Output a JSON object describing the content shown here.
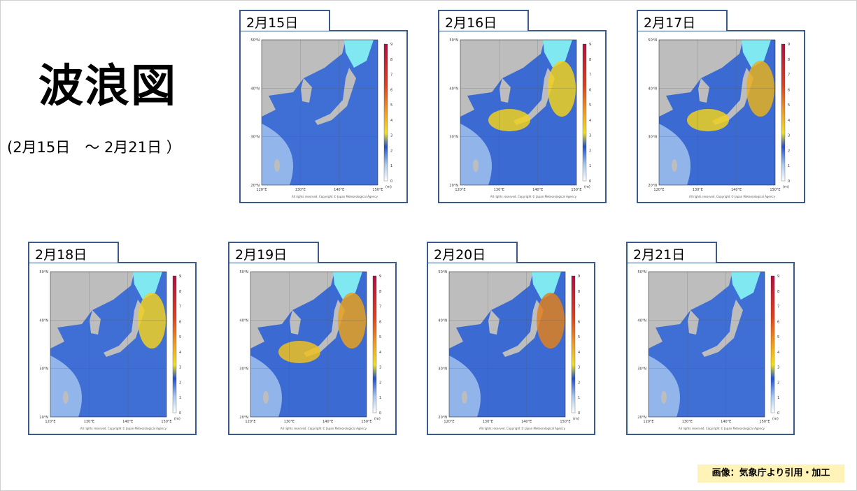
{
  "title": "波浪図",
  "subtitle": "(2月15日　～ 2月21日 ）",
  "credit": "画像：気象庁より引用・加工",
  "map_common": {
    "lat_labels": [
      "50°N",
      "40°N",
      "30°N",
      "20°N"
    ],
    "lon_labels": [
      "120°E",
      "130°E",
      "140°E",
      "150°E"
    ],
    "scale_labels": [
      "9",
      "8",
      "7",
      "6",
      "5",
      "4",
      "3",
      "2",
      "1",
      "0"
    ],
    "unit": "(m)",
    "copyright": "All rights reserved. Copyright © Japan Meteorological Agency"
  },
  "panels": [
    {
      "date": "2月15日",
      "sea_color": "#3f6fd4",
      "hotspots": []
    },
    {
      "date": "2月16日",
      "sea_color": "#3a6ad2",
      "hotspots": [
        "#f0d020",
        "#f0d020"
      ]
    },
    {
      "date": "2月17日",
      "sea_color": "#3a6ad2",
      "hotspots": [
        "#e8b020",
        "#f0d020"
      ]
    },
    {
      "date": "2月18日",
      "sea_color": "#3f6fd4",
      "hotspots": [
        "#f0d020"
      ]
    },
    {
      "date": "2月19日",
      "sea_color": "#3a6ad2",
      "hotspots": [
        "#e8a020",
        "#f0c020"
      ]
    },
    {
      "date": "2月20日",
      "sea_color": "#3a6ad2",
      "hotspots": [
        "#e08020"
      ]
    },
    {
      "date": "2月21日",
      "sea_color": "#3f6fd4",
      "hotspots": []
    }
  ]
}
